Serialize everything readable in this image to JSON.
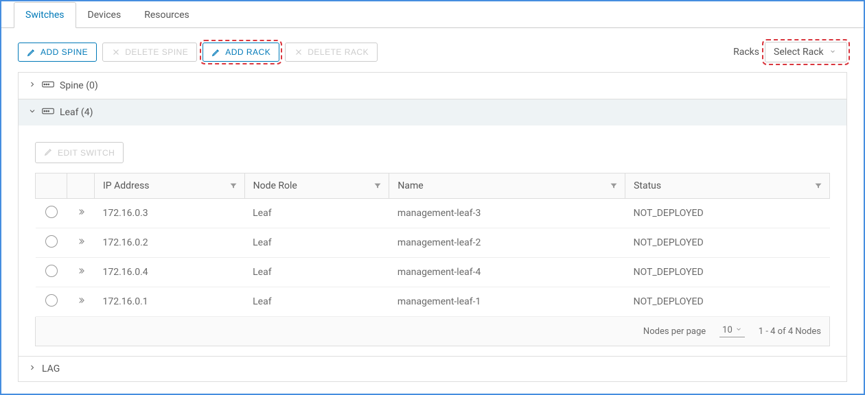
{
  "tabs": [
    {
      "label": "Switches",
      "active": true
    },
    {
      "label": "Devices",
      "active": false
    },
    {
      "label": "Resources",
      "active": false
    }
  ],
  "toolbar": {
    "add_spine_label": "ADD SPINE",
    "delete_spine_label": "DELETE SPINE",
    "add_rack_label": "ADD RACK",
    "delete_rack_label": "DELETE RACK",
    "racks_label": "Racks",
    "select_rack_placeholder": "Select Rack"
  },
  "groups": {
    "spine": {
      "label": "Spine (0)",
      "expanded": false
    },
    "leaf": {
      "label": "Leaf (4)",
      "expanded": true
    },
    "lag": {
      "label": "LAG",
      "expanded": false
    }
  },
  "edit_switch_label": "EDIT SWITCH",
  "table": {
    "columns": {
      "ip": "IP Address",
      "role": "Node Role",
      "name": "Name",
      "status": "Status"
    },
    "rows": [
      {
        "ip": "172.16.0.3",
        "role": "Leaf",
        "name": "management-leaf-3",
        "status": "NOT_DEPLOYED"
      },
      {
        "ip": "172.16.0.2",
        "role": "Leaf",
        "name": "management-leaf-2",
        "status": "NOT_DEPLOYED"
      },
      {
        "ip": "172.16.0.4",
        "role": "Leaf",
        "name": "management-leaf-4",
        "status": "NOT_DEPLOYED"
      },
      {
        "ip": "172.16.0.1",
        "role": "Leaf",
        "name": "management-leaf-1",
        "status": "NOT_DEPLOYED"
      }
    ],
    "footer": {
      "per_page_label": "Nodes per page",
      "per_page_value": "10",
      "range_label": "1 - 4 of 4 Nodes"
    }
  },
  "colors": {
    "primary": "#0079b8",
    "highlight": "#d9363e",
    "muted": "#ccc"
  }
}
